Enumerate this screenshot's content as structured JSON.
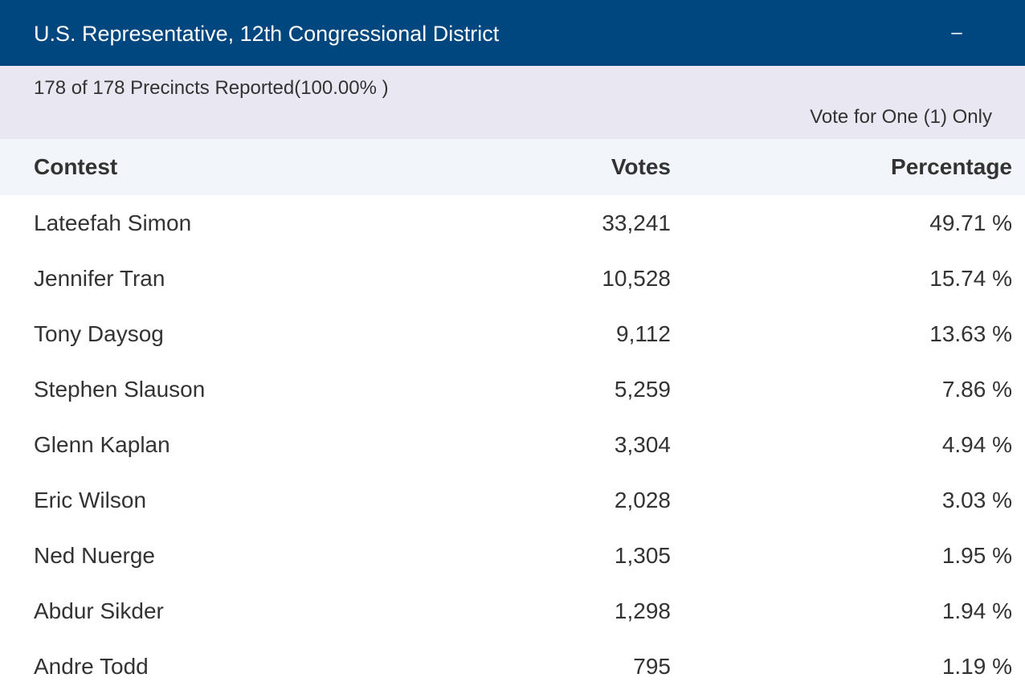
{
  "header": {
    "title": "U.S. Representative, 12th Congressional District",
    "toggle": "–"
  },
  "subheader": {
    "precincts": "178 of 178 Precincts Reported(100.00% )",
    "vote_for": "Vote for One (1) Only"
  },
  "table": {
    "columns": [
      "Contest",
      "Votes",
      "Percentage"
    ],
    "rows": [
      [
        "Lateefah Simon",
        "33,241",
        "49.71 %"
      ],
      [
        "Jennifer Tran",
        "10,528",
        "15.74 %"
      ],
      [
        "Tony Daysog",
        "9,112",
        "13.63 %"
      ],
      [
        "Stephen Slauson",
        "5,259",
        "7.86 %"
      ],
      [
        "Glenn Kaplan",
        "3,304",
        "4.94 %"
      ],
      [
        "Eric Wilson",
        "2,028",
        "3.03 %"
      ],
      [
        "Ned Nuerge",
        "1,305",
        "1.95 %"
      ],
      [
        "Abdur Sikder",
        "1,298",
        "1.94 %"
      ],
      [
        "Andre Todd",
        "795",
        "1.19 %"
      ]
    ]
  }
}
